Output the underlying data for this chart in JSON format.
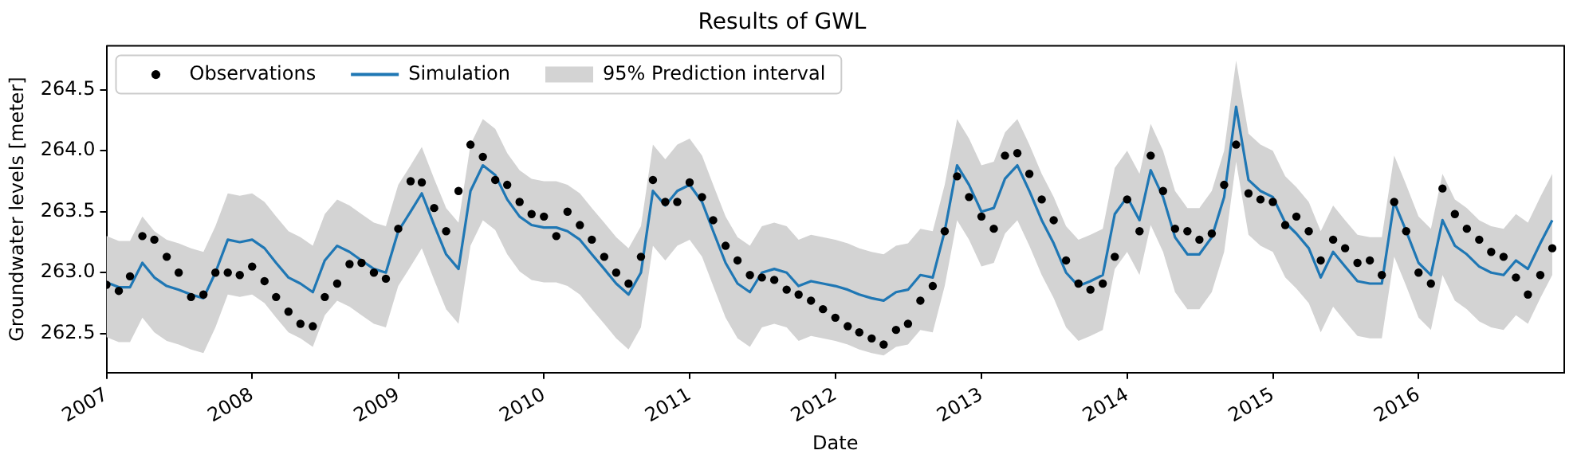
{
  "chart_data": {
    "type": "line",
    "title": "Results of GWL",
    "xlabel": "Date",
    "ylabel": "Groundwater levels [meter]",
    "x": [
      "2007-01",
      "2007-02",
      "2007-03",
      "2007-04",
      "2007-05",
      "2007-06",
      "2007-07",
      "2007-08",
      "2007-09",
      "2007-10",
      "2007-11",
      "2007-12",
      "2008-01",
      "2008-02",
      "2008-03",
      "2008-04",
      "2008-05",
      "2008-06",
      "2008-07",
      "2008-08",
      "2008-09",
      "2008-10",
      "2008-11",
      "2008-12",
      "2009-01",
      "2009-02",
      "2009-03",
      "2009-04",
      "2009-05",
      "2009-06",
      "2009-07",
      "2009-08",
      "2009-09",
      "2009-10",
      "2009-11",
      "2009-12",
      "2010-01",
      "2010-02",
      "2010-03",
      "2010-04",
      "2010-05",
      "2010-06",
      "2010-07",
      "2010-08",
      "2010-09",
      "2010-10",
      "2010-11",
      "2010-12",
      "2011-01",
      "2011-02",
      "2011-03",
      "2011-04",
      "2011-05",
      "2011-06",
      "2011-07",
      "2011-08",
      "2011-09",
      "2011-10",
      "2011-11",
      "2011-12",
      "2012-01",
      "2012-02",
      "2012-03",
      "2012-04",
      "2012-05",
      "2012-06",
      "2012-07",
      "2012-08",
      "2012-09",
      "2012-10",
      "2012-11",
      "2012-12",
      "2013-01",
      "2013-02",
      "2013-03",
      "2013-04",
      "2013-05",
      "2013-06",
      "2013-07",
      "2013-08",
      "2013-09",
      "2013-10",
      "2013-11",
      "2013-12",
      "2014-01",
      "2014-02",
      "2014-03",
      "2014-04",
      "2014-05",
      "2014-06",
      "2014-07",
      "2014-08",
      "2014-09",
      "2014-10",
      "2014-11",
      "2014-12",
      "2015-01",
      "2015-02",
      "2015-03",
      "2015-04",
      "2015-05",
      "2015-06",
      "2015-07",
      "2015-08",
      "2015-09",
      "2015-10",
      "2015-11",
      "2015-12",
      "2016-01",
      "2016-02",
      "2016-03",
      "2016-04",
      "2016-05",
      "2016-06",
      "2016-07",
      "2016-08",
      "2016-09",
      "2016-10",
      "2016-11",
      "2016-12"
    ],
    "series": [
      {
        "name": "Observations",
        "type": "scatter",
        "marker": "circle",
        "color": "#000000",
        "values": [
          262.9,
          262.85,
          262.97,
          263.3,
          263.27,
          263.13,
          263.0,
          262.8,
          262.82,
          263.0,
          263.0,
          262.98,
          263.05,
          262.93,
          262.8,
          262.68,
          262.58,
          262.56,
          262.8,
          262.91,
          263.07,
          263.08,
          263.0,
          262.95,
          263.36,
          263.75,
          263.74,
          263.53,
          263.34,
          263.67,
          264.05,
          263.95,
          263.76,
          263.72,
          263.58,
          263.48,
          263.46,
          263.3,
          263.5,
          263.39,
          263.27,
          263.13,
          263.0,
          262.91,
          263.13,
          263.76,
          263.58,
          263.58,
          263.74,
          263.62,
          263.43,
          263.22,
          263.1,
          262.98,
          262.96,
          262.94,
          262.86,
          262.82,
          262.77,
          262.7,
          262.63,
          262.56,
          262.51,
          262.46,
          262.41,
          262.53,
          262.58,
          262.77,
          262.89,
          263.34,
          263.79,
          263.62,
          263.46,
          263.36,
          263.96,
          263.98,
          263.81,
          263.6,
          263.43,
          263.1,
          262.91,
          262.86,
          262.91,
          263.13,
          263.6,
          263.34,
          263.96,
          263.67,
          263.36,
          263.34,
          263.27,
          263.32,
          263.72,
          264.05,
          263.65,
          263.6,
          263.58,
          263.39,
          263.46,
          263.34,
          263.1,
          263.27,
          263.2,
          263.08,
          263.1,
          262.98,
          263.58,
          263.34,
          263.0,
          262.91,
          263.69,
          263.48,
          263.36,
          263.27,
          263.17,
          263.13,
          262.96,
          262.82,
          262.98,
          263.2
        ]
      },
      {
        "name": "Simulation",
        "type": "line",
        "marker": "none",
        "color": "#1f77b4",
        "values": [
          262.92,
          262.88,
          262.88,
          263.08,
          262.96,
          262.89,
          262.86,
          262.82,
          262.79,
          263.0,
          263.27,
          263.25,
          263.27,
          263.2,
          263.08,
          262.96,
          262.91,
          262.84,
          263.1,
          263.22,
          263.17,
          263.1,
          263.03,
          263.0,
          263.34,
          263.5,
          263.65,
          263.39,
          263.15,
          263.03,
          263.67,
          263.88,
          263.8,
          263.6,
          263.46,
          263.39,
          263.37,
          263.37,
          263.34,
          263.27,
          263.15,
          263.03,
          262.91,
          262.82,
          263.0,
          263.67,
          263.55,
          263.67,
          263.72,
          263.58,
          263.34,
          263.08,
          262.91,
          262.84,
          263.0,
          263.03,
          263.0,
          262.89,
          262.93,
          262.91,
          262.89,
          262.86,
          262.82,
          262.79,
          262.77,
          262.84,
          262.86,
          262.98,
          262.96,
          263.34,
          263.88,
          263.72,
          263.5,
          263.53,
          263.77,
          263.88,
          263.67,
          263.43,
          263.24,
          263.0,
          262.89,
          262.93,
          262.98,
          263.48,
          263.62,
          263.43,
          263.84,
          263.62,
          263.29,
          263.15,
          263.15,
          263.29,
          263.62,
          264.36,
          263.76,
          263.67,
          263.62,
          263.41,
          263.32,
          263.2,
          262.96,
          263.17,
          263.05,
          262.93,
          262.91,
          262.91,
          263.58,
          263.34,
          263.08,
          262.98,
          263.43,
          263.22,
          263.15,
          263.05,
          263.0,
          262.98,
          263.1,
          263.03,
          263.24,
          263.43
        ]
      },
      {
        "name": "95% Prediction interval",
        "type": "area",
        "color": "#d3d3d3",
        "values": [
          null,
          null,
          null,
          null,
          null,
          null,
          null,
          null,
          null,
          null,
          null,
          null,
          null,
          null,
          null,
          null,
          null,
          null,
          null,
          null,
          null,
          null,
          null,
          null,
          null,
          null,
          null,
          null,
          null,
          null,
          null,
          null,
          null,
          null,
          null,
          null,
          null,
          null,
          null,
          null,
          null,
          null,
          null,
          null,
          null,
          null,
          null,
          null,
          null,
          null,
          null,
          null,
          null,
          null,
          null,
          null,
          null,
          null,
          null,
          null,
          null,
          null,
          null,
          null,
          null,
          null,
          null,
          null,
          null,
          null,
          null,
          null,
          null,
          null,
          null,
          null,
          null,
          null,
          null,
          null,
          null,
          null,
          null,
          null,
          null,
          null,
          null,
          null,
          null,
          null,
          null,
          null,
          null,
          null,
          null,
          null,
          null,
          null,
          null,
          null,
          null,
          null,
          null,
          null,
          null,
          null,
          null,
          null,
          null,
          null,
          null,
          null,
          null,
          null,
          null,
          null,
          null,
          null,
          null,
          null
        ],
        "upper": [
          263.3,
          263.26,
          263.26,
          263.46,
          263.34,
          263.27,
          263.24,
          263.2,
          263.17,
          263.38,
          263.65,
          263.63,
          263.65,
          263.58,
          263.46,
          263.34,
          263.29,
          263.22,
          263.48,
          263.6,
          263.55,
          263.48,
          263.41,
          263.38,
          263.72,
          263.88,
          264.03,
          263.77,
          263.53,
          263.41,
          264.05,
          264.26,
          264.18,
          263.98,
          263.84,
          263.77,
          263.75,
          263.75,
          263.72,
          263.65,
          263.53,
          263.41,
          263.29,
          263.2,
          263.38,
          264.05,
          263.93,
          264.05,
          264.1,
          263.96,
          263.72,
          263.46,
          263.29,
          263.22,
          263.38,
          263.41,
          263.38,
          263.27,
          263.31,
          263.29,
          263.27,
          263.24,
          263.2,
          263.17,
          263.15,
          263.22,
          263.24,
          263.36,
          263.34,
          263.72,
          264.26,
          264.1,
          263.88,
          263.91,
          264.15,
          264.26,
          264.05,
          263.81,
          263.62,
          263.38,
          263.27,
          263.31,
          263.36,
          263.86,
          264.0,
          263.81,
          264.22,
          264.0,
          263.67,
          263.53,
          263.53,
          263.67,
          264.0,
          264.74,
          264.14,
          264.05,
          264.0,
          263.79,
          263.7,
          263.58,
          263.34,
          263.55,
          263.43,
          263.31,
          263.29,
          263.29,
          263.96,
          263.72,
          263.46,
          263.36,
          263.81,
          263.6,
          263.53,
          263.43,
          263.38,
          263.36,
          263.48,
          263.41,
          263.62,
          263.81
        ],
        "lower": [
          262.47,
          262.43,
          262.43,
          262.63,
          262.51,
          262.44,
          262.41,
          262.37,
          262.34,
          262.55,
          262.82,
          262.8,
          262.82,
          262.75,
          262.63,
          262.51,
          262.46,
          262.39,
          262.65,
          262.77,
          262.72,
          262.65,
          262.58,
          262.55,
          262.89,
          263.05,
          263.2,
          262.94,
          262.7,
          262.58,
          263.22,
          263.43,
          263.35,
          263.15,
          263.01,
          262.94,
          262.92,
          262.92,
          262.89,
          262.82,
          262.7,
          262.58,
          262.46,
          262.37,
          262.55,
          263.22,
          263.1,
          263.22,
          263.27,
          263.13,
          262.89,
          262.63,
          262.46,
          262.39,
          262.55,
          262.58,
          262.55,
          262.44,
          262.48,
          262.46,
          262.44,
          262.41,
          262.37,
          262.34,
          262.32,
          262.39,
          262.41,
          262.53,
          262.51,
          262.89,
          263.43,
          263.27,
          263.05,
          263.08,
          263.32,
          263.43,
          263.22,
          262.98,
          262.79,
          262.55,
          262.44,
          262.48,
          262.53,
          263.03,
          263.17,
          262.98,
          263.39,
          263.17,
          262.84,
          262.7,
          262.7,
          262.84,
          263.17,
          263.91,
          263.31,
          263.22,
          263.17,
          262.96,
          262.87,
          262.75,
          262.51,
          262.72,
          262.6,
          262.48,
          262.46,
          262.46,
          263.13,
          262.89,
          262.63,
          262.53,
          262.98,
          262.77,
          262.7,
          262.6,
          262.55,
          262.53,
          262.65,
          262.58,
          262.79,
          262.98
        ]
      }
    ],
    "xlim": [
      "2007-01-01",
      "2016-12-31"
    ],
    "xticks": [
      {
        "value": "2007-01-01",
        "label": "2007"
      },
      {
        "value": "2008-01-01",
        "label": "2008"
      },
      {
        "value": "2009-01-01",
        "label": "2009"
      },
      {
        "value": "2010-01-01",
        "label": "2010"
      },
      {
        "value": "2011-01-01",
        "label": "2011"
      },
      {
        "value": "2012-01-01",
        "label": "2012"
      },
      {
        "value": "2013-01-01",
        "label": "2013"
      },
      {
        "value": "2014-01-01",
        "label": "2014"
      },
      {
        "value": "2015-01-01",
        "label": "2015"
      },
      {
        "value": "2016-01-01",
        "label": "2016"
      }
    ],
    "ylim": [
      262.18,
      264.86
    ],
    "yticks": [
      {
        "value": 262.5,
        "label": "262.5"
      },
      {
        "value": 263,
        "label": "263.0"
      },
      {
        "value": 263.5,
        "label": "263.5"
      },
      {
        "value": 264,
        "label": "264.0"
      },
      {
        "value": 264.5,
        "label": "264.5"
      }
    ],
    "grid": false,
    "legend": "top left",
    "line_style": "solid"
  }
}
